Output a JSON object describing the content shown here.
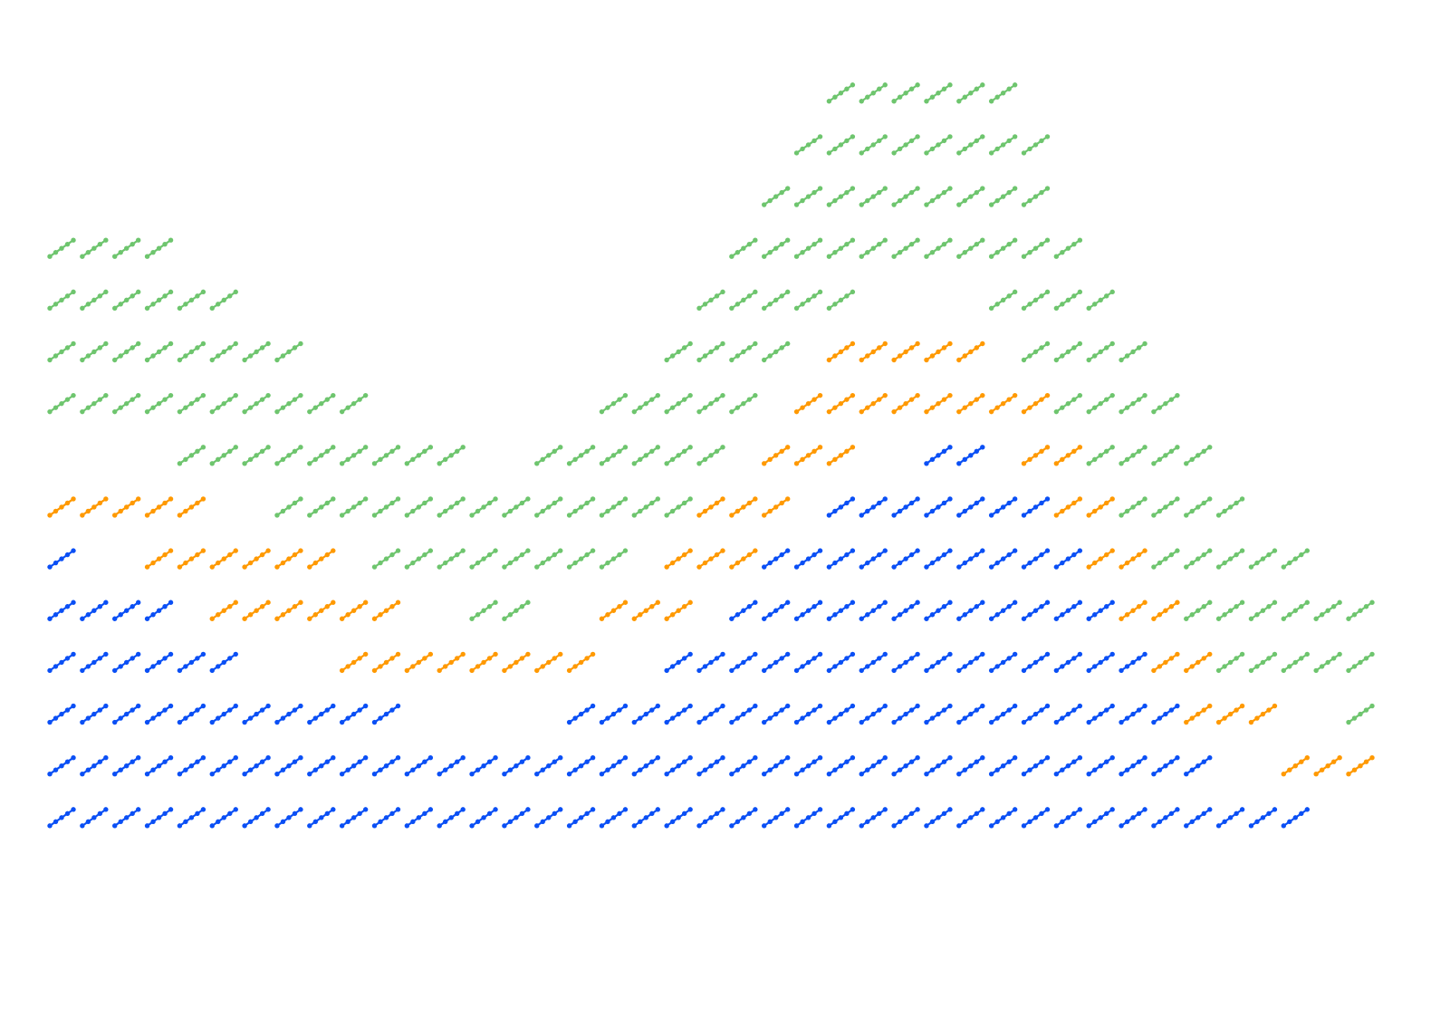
{
  "chart_data": {
    "type": "scatter",
    "title": "",
    "xlabel": "",
    "ylabel": "",
    "legend": "none",
    "grid": false,
    "axes_visible": false,
    "xlim": [
      0,
      40
    ],
    "ylim": [
      0,
      1
    ],
    "stack_order": [
      "bottom",
      "middle",
      "top"
    ],
    "glyph": {
      "style": "short diagonal strokes of dots",
      "dots_per_stroke": 5
    },
    "series": [
      {
        "color": "#0a4ff5",
        "x": [
          0,
          1,
          2,
          3,
          4,
          5,
          6,
          7,
          8,
          9,
          10,
          11,
          12,
          13,
          14,
          15,
          16,
          17,
          18,
          19,
          20,
          21,
          22,
          23,
          24,
          25,
          26,
          27,
          28,
          29,
          30,
          31,
          32,
          33,
          34,
          35,
          36,
          37,
          38,
          39,
          40
        ],
        "y": [
          0.4,
          0.39,
          0.37,
          0.35,
          0.31,
          0.28,
          0.26,
          0.245,
          0.235,
          0.225,
          0.21,
          0.2,
          0.195,
          0.19,
          0.195,
          0.205,
          0.22,
          0.24,
          0.26,
          0.29,
          0.32,
          0.36,
          0.4,
          0.44,
          0.48,
          0.51,
          0.52,
          0.53,
          0.525,
          0.5,
          0.46,
          0.41,
          0.35,
          0.29,
          0.23,
          0.17,
          0.13,
          0.11,
          0.09,
          0.075,
          0.07
        ]
      },
      {
        "color": "#ff9900",
        "x": [
          0,
          1,
          2,
          3,
          4,
          5,
          6,
          7,
          8,
          9,
          10,
          11,
          12,
          13,
          14,
          15,
          16,
          17,
          18,
          19,
          20,
          21,
          22,
          23,
          24,
          25,
          26,
          27,
          28,
          29,
          30,
          31,
          32,
          33,
          34,
          35,
          36,
          37,
          38,
          39,
          40
        ],
        "y": [
          0.12,
          0.125,
          0.135,
          0.15,
          0.16,
          0.175,
          0.18,
          0.175,
          0.165,
          0.15,
          0.14,
          0.125,
          0.11,
          0.1,
          0.095,
          0.095,
          0.1,
          0.11,
          0.12,
          0.13,
          0.145,
          0.16,
          0.175,
          0.18,
          0.18,
          0.17,
          0.165,
          0.16,
          0.155,
          0.145,
          0.13,
          0.12,
          0.115,
          0.11,
          0.105,
          0.1,
          0.1,
          0.1,
          0.1,
          0.1,
          0.1
        ]
      },
      {
        "color": "#6ec56e",
        "x": [
          0,
          1,
          2,
          3,
          4,
          5,
          6,
          7,
          8,
          9,
          10,
          11,
          12,
          13,
          14,
          15,
          16,
          17,
          18,
          19,
          20,
          21,
          22,
          23,
          24,
          25,
          26,
          27,
          28,
          29,
          30,
          31,
          32,
          33,
          34,
          35,
          36,
          37,
          38,
          39,
          40
        ],
        "y": [
          0.31,
          0.3,
          0.29,
          0.28,
          0.28,
          0.27,
          0.265,
          0.25,
          0.24,
          0.235,
          0.23,
          0.23,
          0.225,
          0.225,
          0.23,
          0.235,
          0.24,
          0.25,
          0.26,
          0.27,
          0.285,
          0.3,
          0.31,
          0.32,
          0.32,
          0.31,
          0.31,
          0.32,
          0.325,
          0.335,
          0.32,
          0.31,
          0.3,
          0.29,
          0.28,
          0.26,
          0.25,
          0.23,
          0.21,
          0.2,
          0.2
        ]
      }
    ]
  }
}
